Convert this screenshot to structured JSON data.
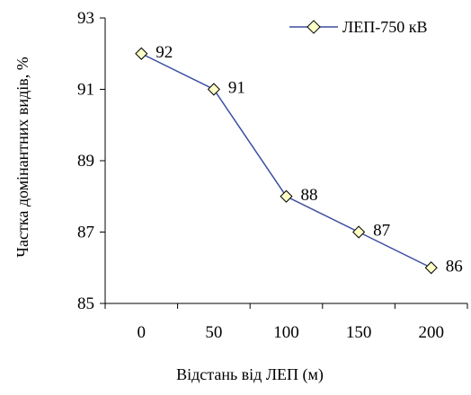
{
  "chart_data": {
    "type": "line",
    "title": "",
    "xlabel": "Відстань від ЛЕП (м)",
    "ylabel": "Частка домінантних видів, %",
    "categories": [
      "0",
      "50",
      "100",
      "150",
      "200"
    ],
    "x": [
      0,
      50,
      100,
      150,
      200
    ],
    "ylim": [
      85,
      93
    ],
    "yticks": [
      85,
      87,
      89,
      91,
      93
    ],
    "grid": false,
    "legend_position": "top-right",
    "series": [
      {
        "name": "ЛЕП-750 кВ",
        "values": [
          92,
          91,
          88,
          87,
          86
        ],
        "data_labels": [
          "92",
          "91",
          "88",
          "87",
          "86"
        ],
        "line_color": "#3A4DA0",
        "marker": "diamond",
        "marker_fill": "#FFFFC8"
      }
    ]
  }
}
